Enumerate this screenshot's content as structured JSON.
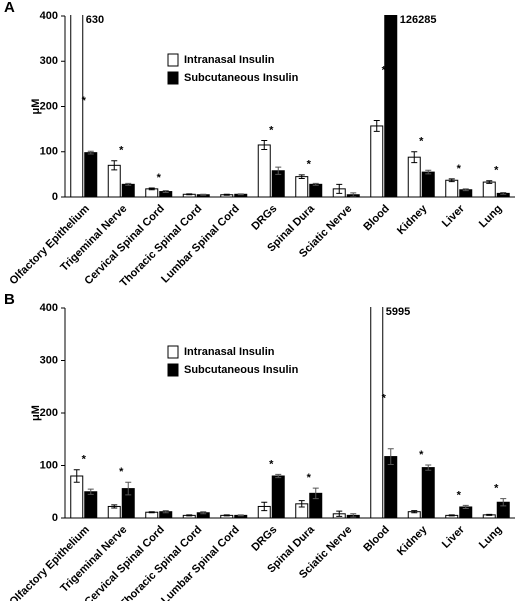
{
  "chart_data": [
    {
      "type": "bar",
      "panel_label": "A",
      "ylabel": "μM",
      "categories": [
        "Olfactory Epithelium",
        "Trigeminal Nerve",
        "Cervical Spinal Cord",
        "Thoracic Spinal Cord",
        "Lumbar Spinal Cord",
        "DRGs",
        "Spinal Dura",
        "Sciatic Nerve",
        "Blood",
        "Kidney",
        "Liver",
        "Lung"
      ],
      "series": [
        {
          "name": "Intranasal Insulin",
          "color": "#ffffff",
          "values": [
            630,
            70,
            18,
            6,
            5,
            115,
            45,
            18,
            157,
            88,
            37,
            33
          ],
          "errors": [
            null,
            10,
            2,
            1,
            1,
            10,
            4,
            10,
            12,
            12,
            3,
            3
          ],
          "value_labels": [
            "630",
            null,
            null,
            null,
            null,
            null,
            null,
            null,
            null,
            null,
            null,
            null
          ]
        },
        {
          "name": "Subcutaneous Insulin",
          "color": "#000000",
          "values": [
            98,
            28,
            12,
            5,
            6,
            58,
            28,
            5,
            126285,
            55,
            16,
            8
          ],
          "errors": [
            3,
            2,
            2,
            1,
            1,
            8,
            2,
            4,
            null,
            4,
            2,
            2
          ],
          "value_labels": [
            null,
            null,
            null,
            null,
            null,
            null,
            null,
            null,
            "126285",
            null,
            null,
            null
          ]
        }
      ],
      "significance": [
        "*",
        "*",
        "*",
        null,
        null,
        "*",
        "*",
        null,
        "*",
        "*",
        "*",
        "*"
      ],
      "ylim": [
        0,
        400
      ],
      "yticks": [
        0,
        100,
        200,
        300,
        400
      ],
      "grid": false,
      "legend": "upper center"
    },
    {
      "type": "bar",
      "panel_label": "B",
      "ylabel": "μM",
      "categories": [
        "Olfactory Epithelium",
        "Trigeminal Nerve",
        "Cervical Spinal Cord",
        "Thoracic Spinal Cord",
        "Lumbar Spinal Cord",
        "DRGs",
        "Spinal Dura",
        "Sciatic Nerve",
        "Blood",
        "Kidney",
        "Liver",
        "Lung"
      ],
      "series": [
        {
          "name": "Intranasal Insulin",
          "color": "#ffffff",
          "values": [
            80,
            22,
            11,
            5,
            5,
            22,
            27,
            8,
            5995,
            12,
            5,
            6
          ],
          "errors": [
            12,
            3,
            1,
            1,
            1,
            8,
            6,
            5,
            null,
            2,
            1,
            1
          ],
          "value_labels": [
            null,
            null,
            null,
            null,
            null,
            null,
            null,
            null,
            "5995",
            null,
            null,
            null
          ]
        },
        {
          "name": "Subcutaneous Insulin",
          "color": "#000000",
          "values": [
            50,
            56,
            12,
            10,
            5,
            80,
            47,
            5,
            117,
            96,
            21,
            30
          ],
          "errors": [
            5,
            12,
            2,
            2,
            1,
            3,
            10,
            3,
            15,
            5,
            3,
            7
          ]
        }
      ],
      "significance": [
        "*",
        "*",
        null,
        null,
        null,
        "*",
        "*",
        null,
        "*",
        "*",
        "*",
        "*"
      ],
      "ylim": [
        0,
        400
      ],
      "yticks": [
        0,
        100,
        200,
        300,
        400
      ],
      "grid": false,
      "legend": "upper center"
    }
  ]
}
